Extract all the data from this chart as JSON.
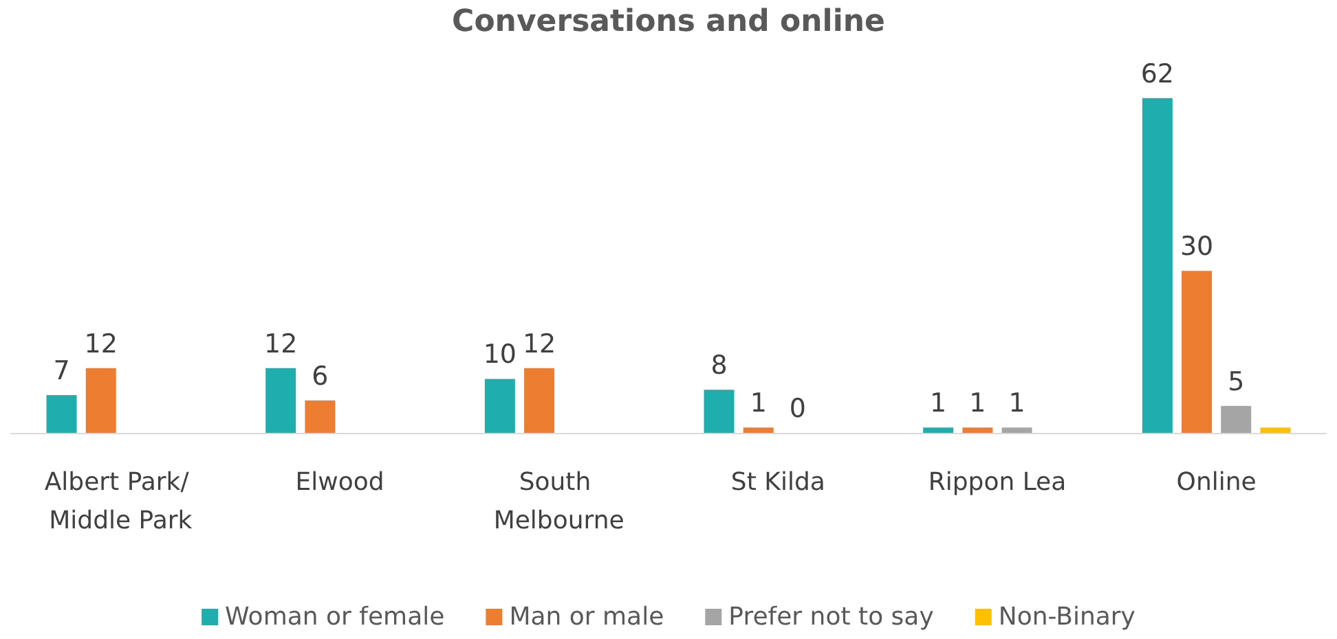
{
  "chart_data": {
    "type": "bar",
    "title": "Conversations and online",
    "categories": [
      "Albert Park/ Middle Park",
      "Elwood",
      "South Melbourne",
      "St Kilda",
      "Rippon Lea",
      "Online"
    ],
    "series": [
      {
        "name": "Woman or female",
        "color": "#1fadad",
        "values": [
          7,
          12,
          10,
          8,
          1,
          62
        ],
        "value_labels": [
          "7",
          "12",
          "10",
          "8",
          "1",
          "62"
        ]
      },
      {
        "name": "Man or male",
        "color": "#ed7d31",
        "values": [
          12,
          6,
          12,
          1,
          1,
          30
        ],
        "value_labels": [
          "12",
          "6",
          "12",
          "1",
          "1",
          "30"
        ]
      },
      {
        "name": "Prefer not to say",
        "color": "#a5a5a5",
        "values": [
          null,
          null,
          null,
          0,
          1,
          5
        ],
        "value_labels": [
          null,
          null,
          null,
          "0",
          "1",
          "5"
        ]
      },
      {
        "name": "Non-Binary",
        "color": "#ffc000",
        "values": [
          null,
          null,
          null,
          null,
          null,
          1
        ],
        "value_labels": [
          null,
          null,
          null,
          null,
          null,
          null
        ]
      }
    ],
    "legend": "bottom"
  }
}
